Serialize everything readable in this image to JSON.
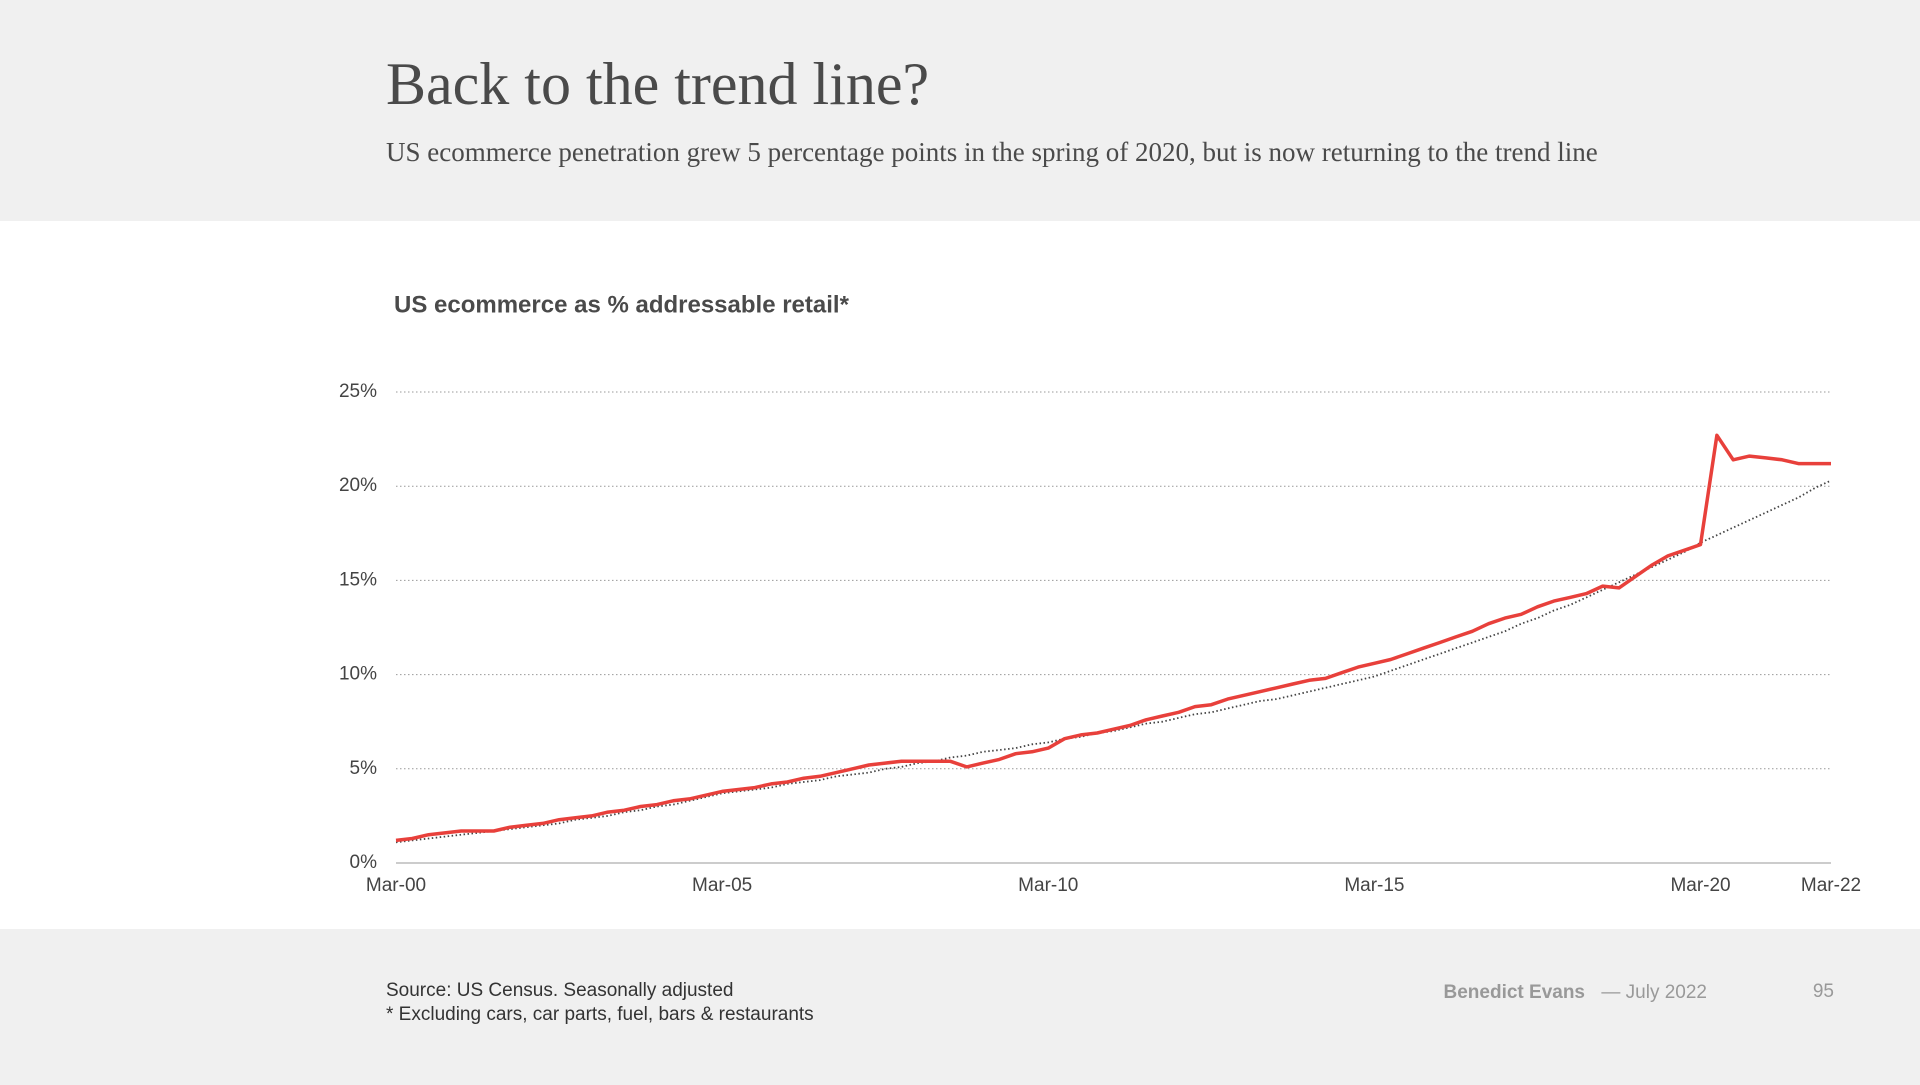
{
  "header": {
    "title": "Back to the trend line?",
    "subtitle": "US ecommerce penetration grew 5 percentage points in the spring of 2020, but is now returning to the trend line"
  },
  "chart_data": {
    "type": "line",
    "title": "US ecommerce as % addressable retail*",
    "categories": [
      "Mar-00",
      null,
      null,
      null,
      null,
      null,
      null,
      null,
      null,
      null,
      null,
      null,
      null,
      null,
      null,
      null,
      null,
      null,
      null,
      null,
      "Mar-05",
      null,
      null,
      null,
      null,
      null,
      null,
      null,
      null,
      null,
      null,
      null,
      null,
      null,
      null,
      null,
      null,
      null,
      null,
      null,
      "Mar-10",
      null,
      null,
      null,
      null,
      null,
      null,
      null,
      null,
      null,
      null,
      null,
      null,
      null,
      null,
      null,
      null,
      null,
      null,
      null,
      "Mar-15",
      null,
      null,
      null,
      null,
      null,
      null,
      null,
      null,
      null,
      null,
      null,
      null,
      null,
      null,
      null,
      null,
      null,
      null,
      null,
      "Mar-20",
      null,
      null,
      null,
      null,
      null,
      null,
      null,
      "Mar-22"
    ],
    "series": [
      {
        "color": "#e8403b",
        "dash": "solid",
        "values": [
          1.2,
          1.3,
          1.5,
          1.6,
          1.7,
          1.7,
          1.7,
          1.9,
          2.0,
          2.1,
          2.3,
          2.4,
          2.5,
          2.7,
          2.8,
          3.0,
          3.1,
          3.3,
          3.4,
          3.6,
          3.8,
          3.9,
          4.0,
          4.2,
          4.3,
          4.5,
          4.6,
          4.8,
          5.0,
          5.2,
          5.3,
          5.4,
          5.4,
          5.4,
          5.4,
          5.1,
          5.3,
          5.5,
          5.8,
          5.9,
          6.1,
          6.6,
          6.8,
          6.9,
          7.1,
          7.3,
          7.6,
          7.8,
          8.0,
          8.3,
          8.4,
          8.7,
          8.9,
          9.1,
          9.3,
          9.5,
          9.7,
          9.8,
          10.1,
          10.4,
          10.6,
          10.8,
          11.1,
          11.4,
          11.7,
          12.0,
          12.3,
          12.7,
          13.0,
          13.2,
          13.6,
          13.9,
          14.1,
          14.3,
          14.7,
          14.6,
          15.2,
          15.8,
          16.3,
          16.6,
          16.9,
          22.7,
          21.4,
          21.6,
          21.5,
          21.4,
          21.2,
          21.2,
          21.2
        ]
      },
      {
        "color": "#444444",
        "dash": "dotted",
        "values": [
          1.1,
          1.2,
          1.3,
          1.4,
          1.5,
          1.6,
          1.7,
          1.8,
          1.9,
          2.0,
          2.1,
          2.3,
          2.4,
          2.5,
          2.7,
          2.8,
          3.0,
          3.1,
          3.3,
          3.5,
          3.7,
          3.8,
          3.9,
          4.0,
          4.2,
          4.3,
          4.4,
          4.6,
          4.7,
          4.8,
          5.0,
          5.1,
          5.3,
          5.4,
          5.6,
          5.7,
          5.9,
          6.0,
          6.1,
          6.3,
          6.4,
          6.6,
          6.7,
          6.9,
          7.0,
          7.2,
          7.4,
          7.5,
          7.7,
          7.9,
          8.0,
          8.2,
          8.4,
          8.6,
          8.7,
          8.9,
          9.1,
          9.3,
          9.5,
          9.7,
          9.9,
          10.2,
          10.5,
          10.8,
          11.1,
          11.4,
          11.7,
          12.0,
          12.3,
          12.7,
          13.0,
          13.4,
          13.7,
          14.1,
          14.5,
          14.9,
          15.3,
          15.7,
          16.1,
          16.5,
          17.0,
          17.4,
          17.8,
          18.2,
          18.6,
          19.0,
          19.4,
          19.9,
          20.3
        ]
      }
    ],
    "ylim": [
      0,
      25
    ],
    "yticks": [
      {
        "value": 0,
        "label": "0%"
      },
      {
        "value": 5,
        "label": "5%"
      },
      {
        "value": 10,
        "label": "10%"
      },
      {
        "value": 15,
        "label": "15%"
      },
      {
        "value": 20,
        "label": "20%"
      },
      {
        "value": 25,
        "label": "25%"
      }
    ],
    "grid": true
  },
  "footer": {
    "source": "Source: US Census. Seasonally adjusted",
    "note": "* Excluding cars, car parts, fuel, bars & restaurants",
    "author": "Benedict Evans",
    "date": "— July 2022",
    "page": "95"
  }
}
